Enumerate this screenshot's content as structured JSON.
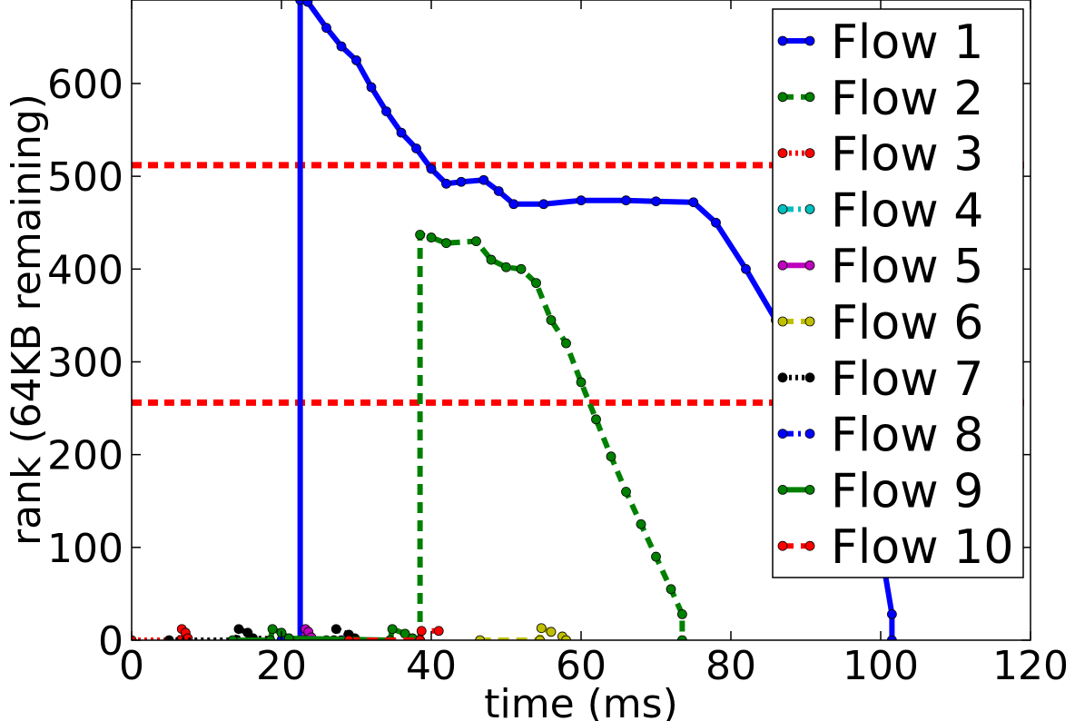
{
  "chart_data": {
    "type": "line",
    "title": "",
    "xlabel": "time (ms)",
    "ylabel": "rank (64KB remaining)",
    "xlim": [
      0,
      120
    ],
    "ylim": [
      0,
      690
    ],
    "xticks": [
      0,
      20,
      40,
      60,
      80,
      100,
      120
    ],
    "xtick_labels": [
      "0",
      "20",
      "40",
      "60",
      "80",
      "100",
      "120"
    ],
    "yticks": [
      0,
      100,
      200,
      300,
      400,
      500,
      600
    ],
    "ytick_labels": [
      "0",
      "100",
      "200",
      "300",
      "400",
      "500",
      "600"
    ],
    "grid": false,
    "legend_position": "top-right",
    "reference_lines": [
      {
        "y": 512,
        "color": "#ff0000",
        "style": "dashed"
      },
      {
        "y": 256,
        "color": "#ff0000",
        "style": "dashed"
      }
    ],
    "series": [
      {
        "name": "Flow 1",
        "color": "#0000ff",
        "style": "solid",
        "x": [
          22.5,
          22.5,
          23.5,
          26,
          28,
          30,
          32,
          34,
          36,
          38,
          40,
          42,
          44,
          47,
          49,
          51,
          55,
          60,
          66,
          70,
          75,
          78,
          82,
          86,
          90,
          94,
          97,
          100,
          101.5,
          101.5
        ],
        "y": [
          0,
          690,
          688,
          660,
          640,
          625,
          596,
          570,
          547,
          530,
          508,
          492,
          494,
          496,
          484,
          470,
          470,
          474,
          474,
          473,
          472,
          450,
          400,
          345,
          290,
          230,
          170,
          100,
          28,
          0
        ]
      },
      {
        "name": "Flow 2",
        "color": "#008000",
        "style": "dashed",
        "x": [
          38.5,
          38.5,
          40,
          42,
          46,
          48,
          50,
          52,
          54,
          56,
          58,
          60,
          62,
          64,
          66,
          68,
          70,
          72,
          73.5,
          73.5
        ],
        "y": [
          0,
          437,
          434,
          428,
          430,
          410,
          402,
          400,
          385,
          345,
          320,
          278,
          238,
          198,
          160,
          125,
          90,
          55,
          28,
          0
        ]
      },
      {
        "name": "Flow 3",
        "color": "#ff0000",
        "style": "dotted",
        "x": [
          0,
          6.5,
          6.7,
          7.2,
          7.5
        ],
        "y": [
          0,
          0,
          12,
          8,
          2
        ]
      },
      {
        "name": "Flow 4",
        "color": "#00bfbf",
        "style": "dashdot",
        "x": [
          26,
          30
        ],
        "y": [
          0,
          0
        ]
      },
      {
        "name": "Flow 5",
        "color": "#bf00bf",
        "style": "solid",
        "x": [
          23,
          23.2,
          23.6,
          24
        ],
        "y": [
          0,
          12,
          9,
          3
        ]
      },
      {
        "name": "Flow 6",
        "color": "#bfbf00",
        "style": "dashed",
        "x": [
          46.5,
          54.5,
          54.7,
          56,
          57.5,
          58
        ],
        "y": [
          0,
          0,
          13,
          9,
          4,
          0
        ]
      },
      {
        "name": "Flow 7",
        "color": "#000000",
        "style": "dotted",
        "x": [
          5,
          14,
          14.3,
          15.5,
          16.2,
          27,
          27.3,
          29,
          29.8
        ],
        "y": [
          0,
          0,
          12,
          8,
          2,
          0,
          12,
          6,
          2
        ]
      },
      {
        "name": "Flow 8",
        "color": "#0000ff",
        "style": "dashdot",
        "x": [
          20,
          28
        ],
        "y": [
          0,
          0
        ]
      },
      {
        "name": "Flow 9",
        "color": "#008000",
        "style": "solid",
        "x": [
          13.5,
          18.5,
          18.8,
          20,
          21,
          34.5,
          34.8,
          36.5,
          37.5
        ],
        "y": [
          0,
          0,
          12,
          8,
          2,
          0,
          12,
          7,
          2
        ]
      },
      {
        "name": "Flow 10",
        "color": "#ff0000",
        "style": "dashed",
        "x": [
          29,
          38.5,
          38.7,
          41
        ],
        "y": [
          0,
          0,
          10,
          10
        ]
      }
    ]
  }
}
